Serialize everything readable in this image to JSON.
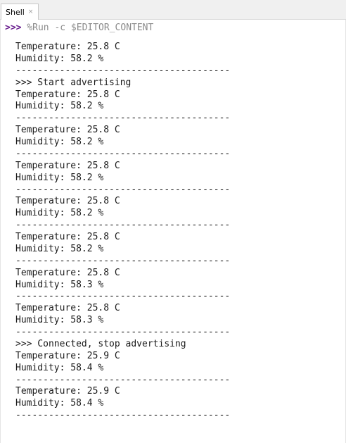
{
  "tab": {
    "label": "Shell",
    "close_glyph": "×"
  },
  "shell": {
    "prompt": ">>>",
    "command": "%Run -c $EDITOR_CONTENT",
    "output_lines": [
      "Temperature: 25.8 C",
      "Humidity: 58.2 %",
      "---------------------------------------",
      ">>> Start advertising",
      "Temperature: 25.8 C",
      "Humidity: 58.2 %",
      "---------------------------------------",
      "Temperature: 25.8 C",
      "Humidity: 58.2 %",
      "---------------------------------------",
      "Temperature: 25.8 C",
      "Humidity: 58.2 %",
      "---------------------------------------",
      "Temperature: 25.8 C",
      "Humidity: 58.2 %",
      "---------------------------------------",
      "Temperature: 25.8 C",
      "Humidity: 58.2 %",
      "---------------------------------------",
      "Temperature: 25.8 C",
      "Humidity: 58.3 %",
      "---------------------------------------",
      "Temperature: 25.8 C",
      "Humidity: 58.3 %",
      "---------------------------------------",
      ">>> Connected, stop advertising",
      "Temperature: 25.9 C",
      "Humidity: 58.4 %",
      "---------------------------------------",
      "Temperature: 25.9 C",
      "Humidity: 58.4 %",
      "---------------------------------------"
    ]
  },
  "colors": {
    "prompt": "#6a1f8f",
    "command": "#8a8a8a",
    "text": "#1a1a1a"
  }
}
